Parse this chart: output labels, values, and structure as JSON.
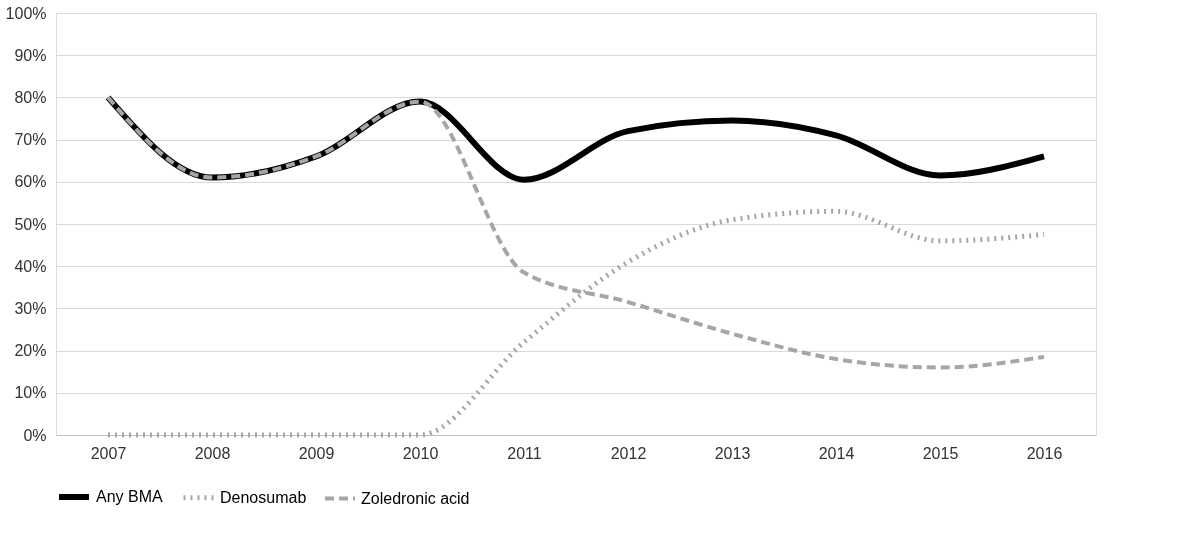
{
  "chart_data": {
    "type": "line",
    "categories": [
      "2007",
      "2008",
      "2009",
      "2010",
      "2011",
      "2012",
      "2013",
      "2014",
      "2015",
      "2016"
    ],
    "series": [
      {
        "name": "Any BMA",
        "color": "#000000",
        "line_style": "solid",
        "values": [
          80,
          61,
          66,
          79,
          60.5,
          72,
          74.5,
          71,
          61.5,
          66
        ]
      },
      {
        "name": "Denosumab",
        "color": "#a6a6a6",
        "line_style": "dotted",
        "values": [
          0,
          0,
          0,
          0,
          22,
          41,
          51,
          53,
          46,
          47.5
        ]
      },
      {
        "name": "Zoledronic acid",
        "color": "#a6a6a6",
        "line_style": "dashed",
        "values": [
          80,
          61,
          66,
          79,
          38.5,
          31.5,
          24,
          18,
          16,
          18.5
        ]
      }
    ],
    "ylim": [
      0,
      100
    ],
    "yticks": [
      {
        "value": 0,
        "label": "0%"
      },
      {
        "value": 10,
        "label": "10%"
      },
      {
        "value": 20,
        "label": "20%"
      },
      {
        "value": 30,
        "label": "30%"
      },
      {
        "value": 40,
        "label": "40%"
      },
      {
        "value": 50,
        "label": "50%"
      },
      {
        "value": 60,
        "label": "60%"
      },
      {
        "value": 70,
        "label": "70%"
      },
      {
        "value": 80,
        "label": "80%"
      },
      {
        "value": 90,
        "label": "90%"
      },
      {
        "value": 100,
        "label": "100%"
      }
    ],
    "grid": "y",
    "legend": "bottom",
    "marker": "none"
  }
}
